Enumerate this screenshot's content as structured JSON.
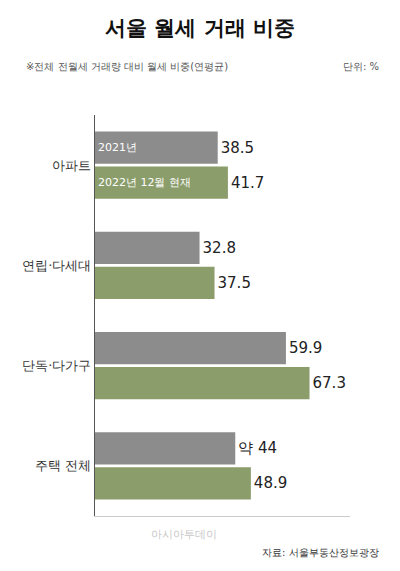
{
  "chart_data": {
    "type": "bar",
    "orientation": "horizontal",
    "title": "서울 월세 거래 비중",
    "subtitle": "※전체 전월세 거래량 대비 월세 비중(연평균)",
    "unit_label": "단위: %",
    "source": "자료: 서울부동산정보광장",
    "watermark": "아시아투데이",
    "categories": [
      "아파트",
      "연립·다세대",
      "단독·다가구",
      "주택 전체"
    ],
    "series": [
      {
        "name": "2021년",
        "color": "#8c8c8c",
        "values": [
          38.5,
          32.8,
          59.9,
          44
        ],
        "value_labels": [
          "38.5",
          "32.8",
          "59.9",
          "약 44"
        ]
      },
      {
        "name": "2022년 12월 현재",
        "color": "#8b9d6b",
        "values": [
          41.7,
          37.5,
          67.3,
          48.9
        ],
        "value_labels": [
          "41.7",
          "37.5",
          "67.3",
          "48.9"
        ]
      }
    ],
    "xlim": [
      0,
      80
    ],
    "xticks": [],
    "tick_labels": "y",
    "data_labels": true,
    "grid": false
  }
}
